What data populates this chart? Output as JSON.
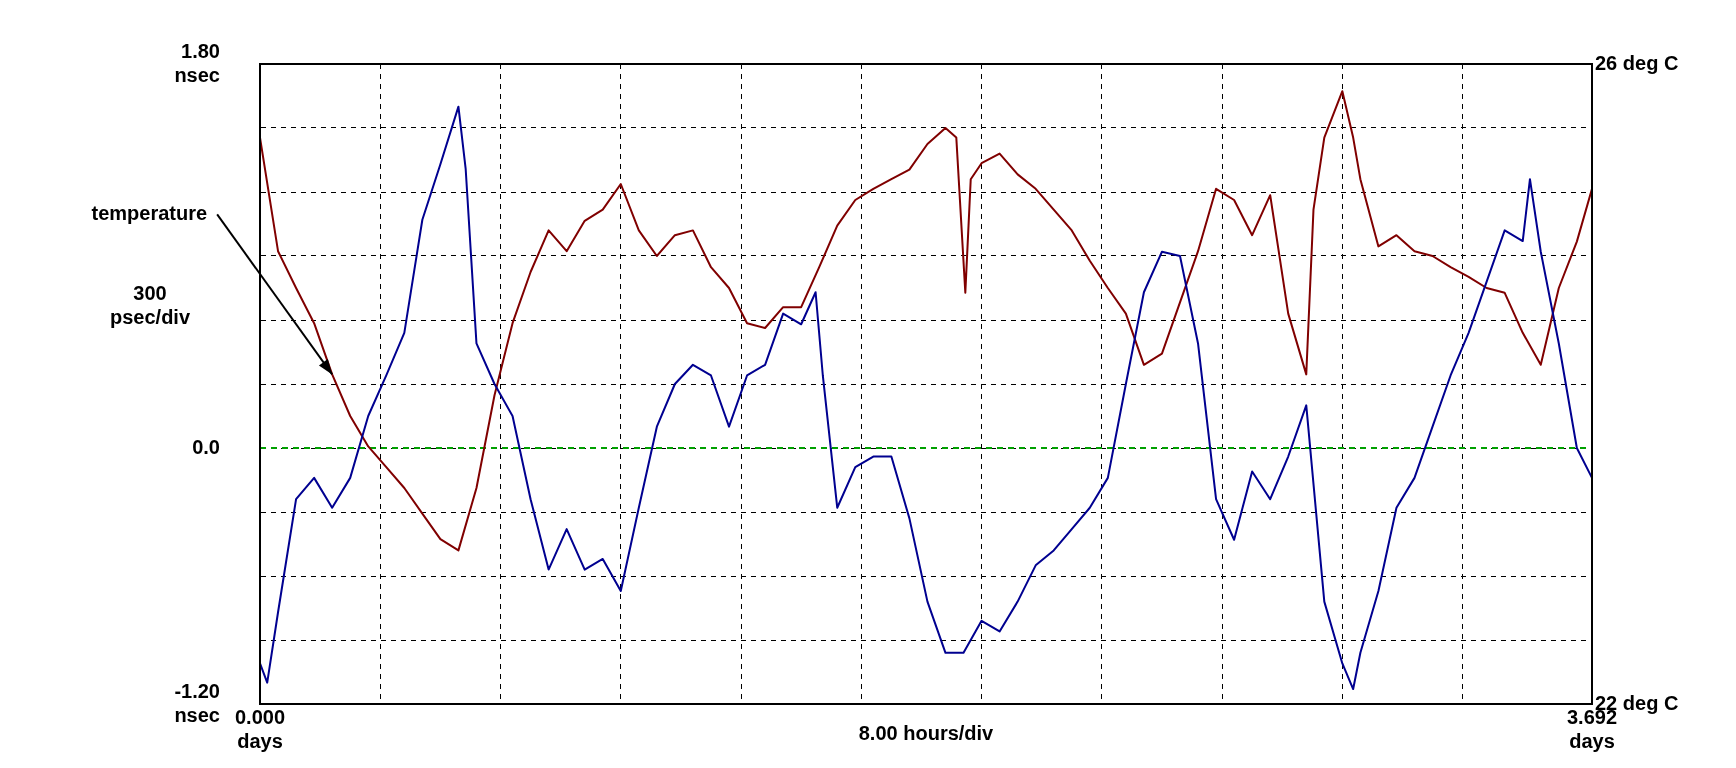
{
  "chart_data": {
    "type": "line",
    "xlabel": "8.00 hours/div",
    "ylabel": "300 psec/div",
    "xlim": [
      0,
      3.692
    ],
    "xticks": [
      {
        "value": 0,
        "label": "0.000 days"
      },
      {
        "value": 0.3333,
        "label": null
      },
      {
        "value": 0.6667,
        "label": null
      },
      {
        "value": 1,
        "label": null
      },
      {
        "value": 1.3333,
        "label": null
      },
      {
        "value": 1.6667,
        "label": null
      },
      {
        "value": 2,
        "label": null
      },
      {
        "value": 2.3333,
        "label": null
      },
      {
        "value": 2.6667,
        "label": null
      },
      {
        "value": 3,
        "label": null
      },
      {
        "value": 3.3333,
        "label": null
      },
      {
        "value": 3.692,
        "label": "3.692 days"
      }
    ],
    "ylim": [
      -1.2,
      1.8
    ],
    "yticks": [
      {
        "value": -1.2,
        "label": "-1.20 nsec"
      },
      {
        "value": -0.9,
        "label": null
      },
      {
        "value": -0.6,
        "label": null
      },
      {
        "value": -0.3,
        "label": null
      },
      {
        "value": 0,
        "label": "0.0"
      },
      {
        "value": 0.3,
        "label": null
      },
      {
        "value": 0.6,
        "label": null
      },
      {
        "value": 0.9,
        "label": null
      },
      {
        "value": 1.2,
        "label": null
      },
      {
        "value": 1.5,
        "label": null
      },
      {
        "value": 1.8,
        "label": "1.80 nsec"
      }
    ],
    "y2lim": [
      22,
      26
    ],
    "y2ticks": [
      {
        "value": 22,
        "label": "22 deg C"
      },
      {
        "value": 26,
        "label": "26 deg C"
      }
    ],
    "grid": true,
    "ref_lines": [
      {
        "axis": "y",
        "value": 0,
        "color": "#00a000",
        "line_style": "dashed"
      }
    ],
    "annotations": [
      {
        "text": "temperature",
        "x": 0.2,
        "y": 0.345
      }
    ],
    "series": [
      {
        "color": "#000090",
        "x": [
          0,
          0.02,
          0.05,
          0.1,
          0.15,
          0.2,
          0.25,
          0.3,
          0.35,
          0.4,
          0.45,
          0.5,
          0.55,
          0.57,
          0.6,
          0.65,
          0.7,
          0.75,
          0.8,
          0.85,
          0.9,
          0.95,
          1,
          1.05,
          1.1,
          1.15,
          1.2,
          1.25,
          1.3,
          1.35,
          1.4,
          1.45,
          1.5,
          1.54,
          1.56,
          1.6,
          1.65,
          1.7,
          1.75,
          1.8,
          1.85,
          1.9,
          1.95,
          2,
          2.05,
          2.1,
          2.15,
          2.2,
          2.25,
          2.3,
          2.35,
          2.4,
          2.45,
          2.5,
          2.55,
          2.6,
          2.65,
          2.7,
          2.75,
          2.8,
          2.85,
          2.9,
          2.95,
          3,
          3.03,
          3.05,
          3.1,
          3.15,
          3.2,
          3.25,
          3.3,
          3.35,
          3.4,
          3.45,
          3.5,
          3.52,
          3.55,
          3.6,
          3.65,
          3.692
        ],
        "values": [
          -1.01,
          -1.1,
          -0.77,
          -0.24,
          -0.14,
          -0.28,
          -0.14,
          0.15,
          0.34,
          0.54,
          1.07,
          1.33,
          1.6,
          1.31,
          0.49,
          0.3,
          0.15,
          -0.24,
          -0.57,
          -0.38,
          -0.57,
          -0.52,
          -0.67,
          -0.28,
          0.1,
          0.3,
          0.39,
          0.34,
          0.1,
          0.34,
          0.39,
          0.63,
          0.58,
          0.73,
          0.34,
          -0.28,
          -0.09,
          -0.04,
          -0.04,
          -0.33,
          -0.72,
          -0.96,
          -0.96,
          -0.81,
          -0.86,
          -0.72,
          -0.55,
          -0.48,
          -0.38,
          -0.28,
          -0.14,
          0.3,
          0.73,
          0.92,
          0.9,
          0.49,
          -0.24,
          -0.43,
          -0.11,
          -0.24,
          -0.04,
          0.2,
          -0.72,
          -1.01,
          -1.13,
          -0.96,
          -0.67,
          -0.28,
          -0.14,
          0.1,
          0.34,
          0.54,
          0.78,
          1.02,
          0.97,
          1.26,
          0.92,
          0.49,
          0,
          -0.14
        ]
      },
      {
        "color": "#800000",
        "axis": "y2",
        "x": [
          0,
          0.05,
          0.1,
          0.15,
          0.2,
          0.25,
          0.3,
          0.35,
          0.4,
          0.45,
          0.5,
          0.55,
          0.6,
          0.65,
          0.7,
          0.75,
          0.8,
          0.85,
          0.9,
          0.95,
          1,
          1.05,
          1.1,
          1.15,
          1.2,
          1.25,
          1.3,
          1.35,
          1.4,
          1.45,
          1.5,
          1.55,
          1.6,
          1.65,
          1.7,
          1.75,
          1.8,
          1.85,
          1.9,
          1.93,
          1.955,
          1.97,
          2,
          2.05,
          2.1,
          2.15,
          2.2,
          2.25,
          2.3,
          2.35,
          2.4,
          2.45,
          2.5,
          2.55,
          2.6,
          2.65,
          2.7,
          2.75,
          2.8,
          2.85,
          2.9,
          2.92,
          2.95,
          3,
          3.03,
          3.05,
          3.1,
          3.15,
          3.2,
          3.25,
          3.3,
          3.35,
          3.4,
          3.45,
          3.5,
          3.55,
          3.6,
          3.65,
          3.692
        ],
        "values": [
          25.54,
          24.83,
          24.6,
          24.38,
          24.06,
          23.8,
          23.61,
          23.48,
          23.35,
          23.19,
          23.03,
          22.96,
          23.35,
          23.93,
          24.38,
          24.7,
          24.96,
          24.83,
          25.02,
          25.09,
          25.25,
          24.96,
          24.8,
          24.93,
          24.96,
          24.73,
          24.6,
          24.38,
          24.35,
          24.48,
          24.48,
          24.73,
          24.99,
          25.15,
          25.22,
          25.28,
          25.34,
          25.5,
          25.6,
          25.54,
          24.57,
          25.28,
          25.38,
          25.44,
          25.31,
          25.22,
          25.09,
          24.96,
          24.77,
          24.6,
          24.44,
          24.12,
          24.19,
          24.51,
          24.83,
          25.22,
          25.15,
          24.93,
          25.18,
          24.44,
          24.06,
          25.09,
          25.54,
          25.83,
          25.54,
          25.28,
          24.86,
          24.93,
          24.83,
          24.8,
          24.73,
          24.67,
          24.6,
          24.57,
          24.32,
          24.12,
          24.6,
          24.89,
          25.22
        ]
      }
    ]
  }
}
